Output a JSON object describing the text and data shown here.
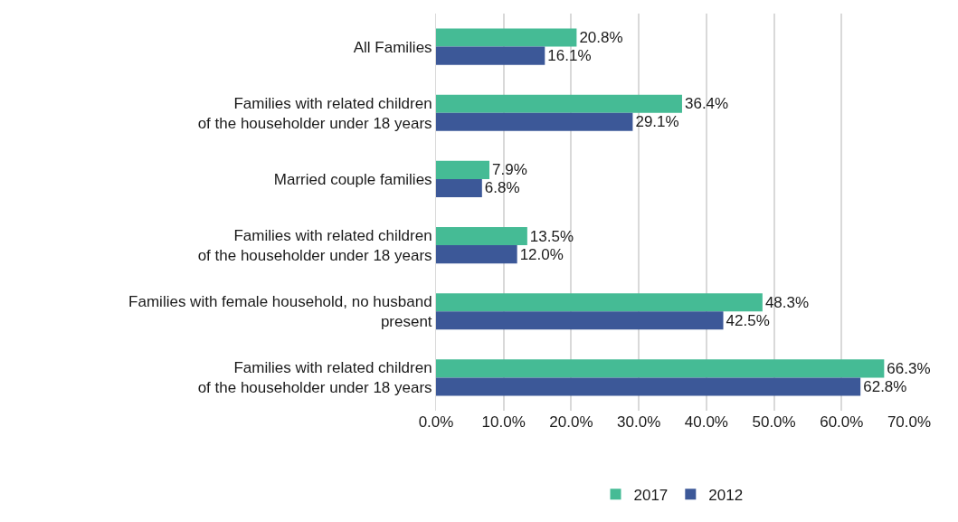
{
  "chart_data": {
    "type": "bar",
    "orientation": "horizontal",
    "categories": [
      "All Families",
      "Families with related children\nof the householder under 18 years",
      "Married couple families",
      "Families with related children\nof the householder under 18 years",
      "Families with female household, no husband\npresent",
      "Families with related children\nof the householder under 18 years"
    ],
    "series": [
      {
        "name": "2017",
        "color": "#45bb95",
        "values": [
          20.8,
          36.4,
          7.9,
          13.5,
          48.3,
          66.3
        ],
        "value_labels": [
          "20.8%",
          "36.4%",
          "7.9%",
          "13.5%",
          "48.3%",
          "66.3%"
        ]
      },
      {
        "name": "2012",
        "color": "#3c5898",
        "values": [
          16.1,
          29.1,
          6.8,
          12.0,
          42.5,
          62.8
        ],
        "value_labels": [
          "16.1%",
          "29.1%",
          "6.8%",
          "12.0%",
          "42.5%",
          "62.8%"
        ]
      }
    ],
    "xlim": [
      0,
      70
    ],
    "xticks": [
      {
        "value": 0,
        "label": "0.0%"
      },
      {
        "value": 10,
        "label": "10.0%"
      },
      {
        "value": 20,
        "label": "20.0%"
      },
      {
        "value": 30,
        "label": "30.0%"
      },
      {
        "value": 40,
        "label": "40.0%"
      },
      {
        "value": 50,
        "label": "50.0%"
      },
      {
        "value": 60,
        "label": "60.0%"
      },
      {
        "value": 70,
        "label": "70.0%"
      }
    ],
    "grid": "x",
    "legend": "bottom"
  }
}
